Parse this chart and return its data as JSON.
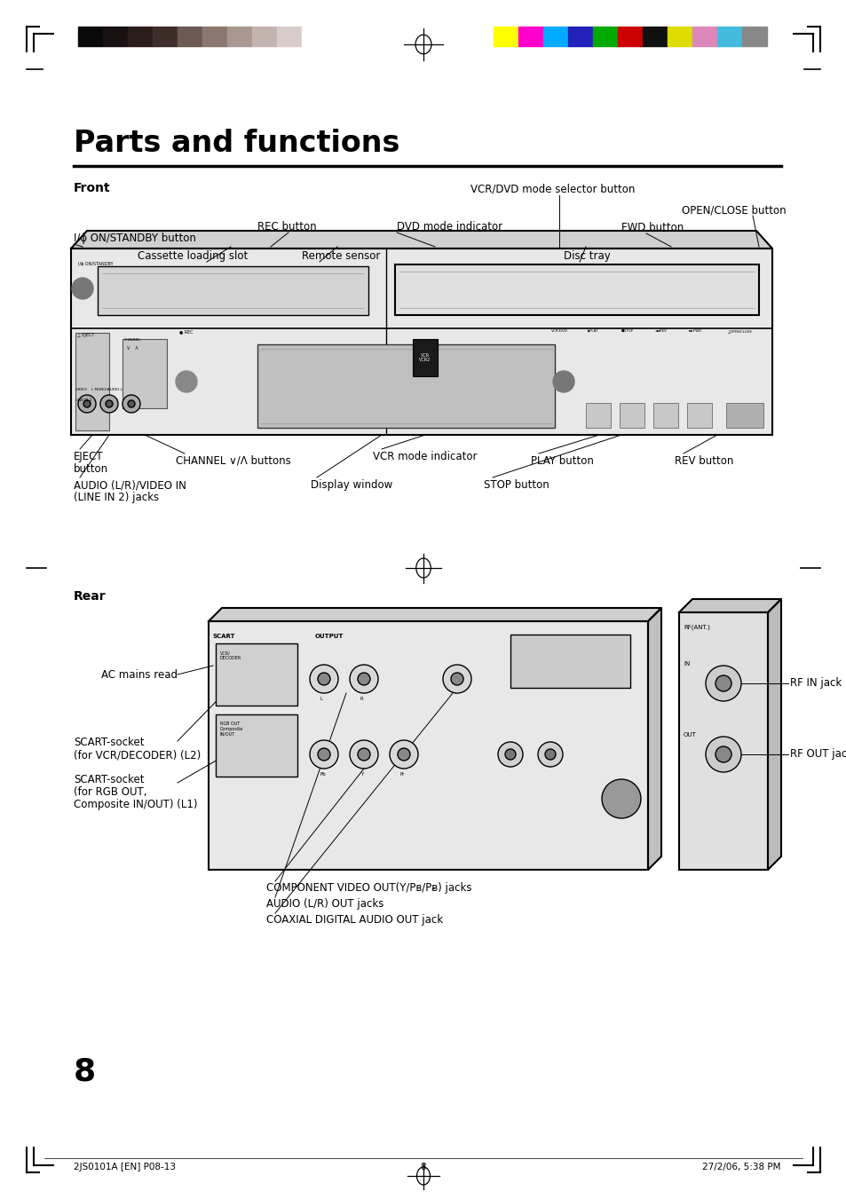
{
  "title": "Parts and functions",
  "section1": "Front",
  "section2": "Rear",
  "bg_color": "#ffffff",
  "text_color": "#000000",
  "grayscale_colors": [
    "#0a0a0a",
    "#1a1212",
    "#2a1e1a",
    "#3d2e2a",
    "#6b5a54",
    "#8a7870",
    "#a89890",
    "#c2b4ae",
    "#d8ccca",
    "#ffffff"
  ],
  "color_bars": [
    "#ffff00",
    "#ff00cc",
    "#00aaff",
    "#2222bb",
    "#00aa00",
    "#cc0000",
    "#111111",
    "#dddd00",
    "#dd88bb",
    "#44bbdd",
    "#888888"
  ],
  "footer_left": "2JS0101A [EN] P08-13",
  "footer_center": "8",
  "footer_right": "27/2/06, 5:38 PM",
  "page_number": "8"
}
